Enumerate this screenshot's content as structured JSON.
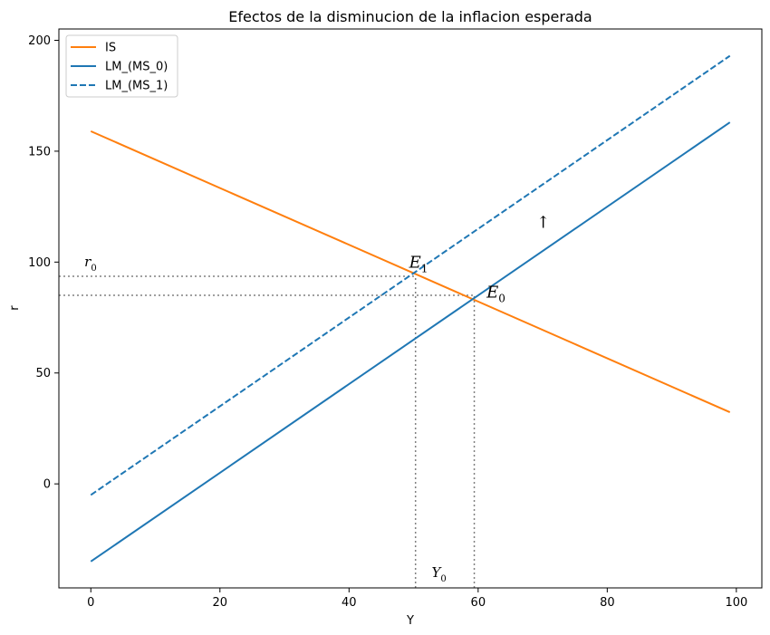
{
  "chart_data": {
    "type": "line",
    "title": "Efectos de la disminucion de la inflacion esperada",
    "xlabel": "Y",
    "ylabel": "r",
    "xlim": [
      -4.95,
      103.95
    ],
    "ylim": [
      -46.9,
      205.1
    ],
    "xticks": [
      0,
      20,
      40,
      60,
      80,
      100
    ],
    "yticks": [
      0,
      50,
      100,
      150,
      200
    ],
    "legend": {
      "placement": "top-left"
    },
    "grid": false,
    "series": [
      {
        "name": "IS",
        "style": "solid",
        "color": "#ff7f0e",
        "x": [
          0,
          99
        ],
        "y": [
          159,
          32.3
        ]
      },
      {
        "name": "LM_(MS_0)",
        "style": "solid",
        "color": "#1f77b4",
        "x": [
          0,
          99
        ],
        "y": [
          -35,
          163
        ]
      },
      {
        "name": "LM_(MS_1)",
        "style": "dashed",
        "color": "#1f77b4",
        "x": [
          0,
          99
        ],
        "y": [
          -5,
          193
        ]
      }
    ],
    "guides": [
      {
        "kind": "hline",
        "y": 93.6,
        "x_from": -4.95,
        "x_to": 50.3
      },
      {
        "kind": "hline",
        "y": 85.0,
        "x_from": -4.95,
        "x_to": 59.4
      },
      {
        "kind": "vline",
        "x": 50.3,
        "y_from": -46.9,
        "y_to": 93.6
      },
      {
        "kind": "vline",
        "x": 59.4,
        "y_from": -46.9,
        "y_to": 85.0
      }
    ],
    "annotations": [
      {
        "id": "e1",
        "main": "E",
        "sub": "1",
        "x": 49.3,
        "y": 97.5,
        "size": 18
      },
      {
        "id": "e0",
        "main": "E",
        "sub": "0",
        "x": 61.3,
        "y": 84.0,
        "size": 18
      },
      {
        "id": "r0",
        "main": "r",
        "sub": "0",
        "x": -1.0,
        "y": 98.0,
        "size": 15
      },
      {
        "id": "y0",
        "main": "Y",
        "sub": "0",
        "x": 52.8,
        "y": -42.0,
        "size": 15
      },
      {
        "id": "arrow",
        "main": "↑",
        "sub": "",
        "x": 69.0,
        "y": 115.5,
        "size": 18,
        "color": "#808080"
      }
    ]
  }
}
